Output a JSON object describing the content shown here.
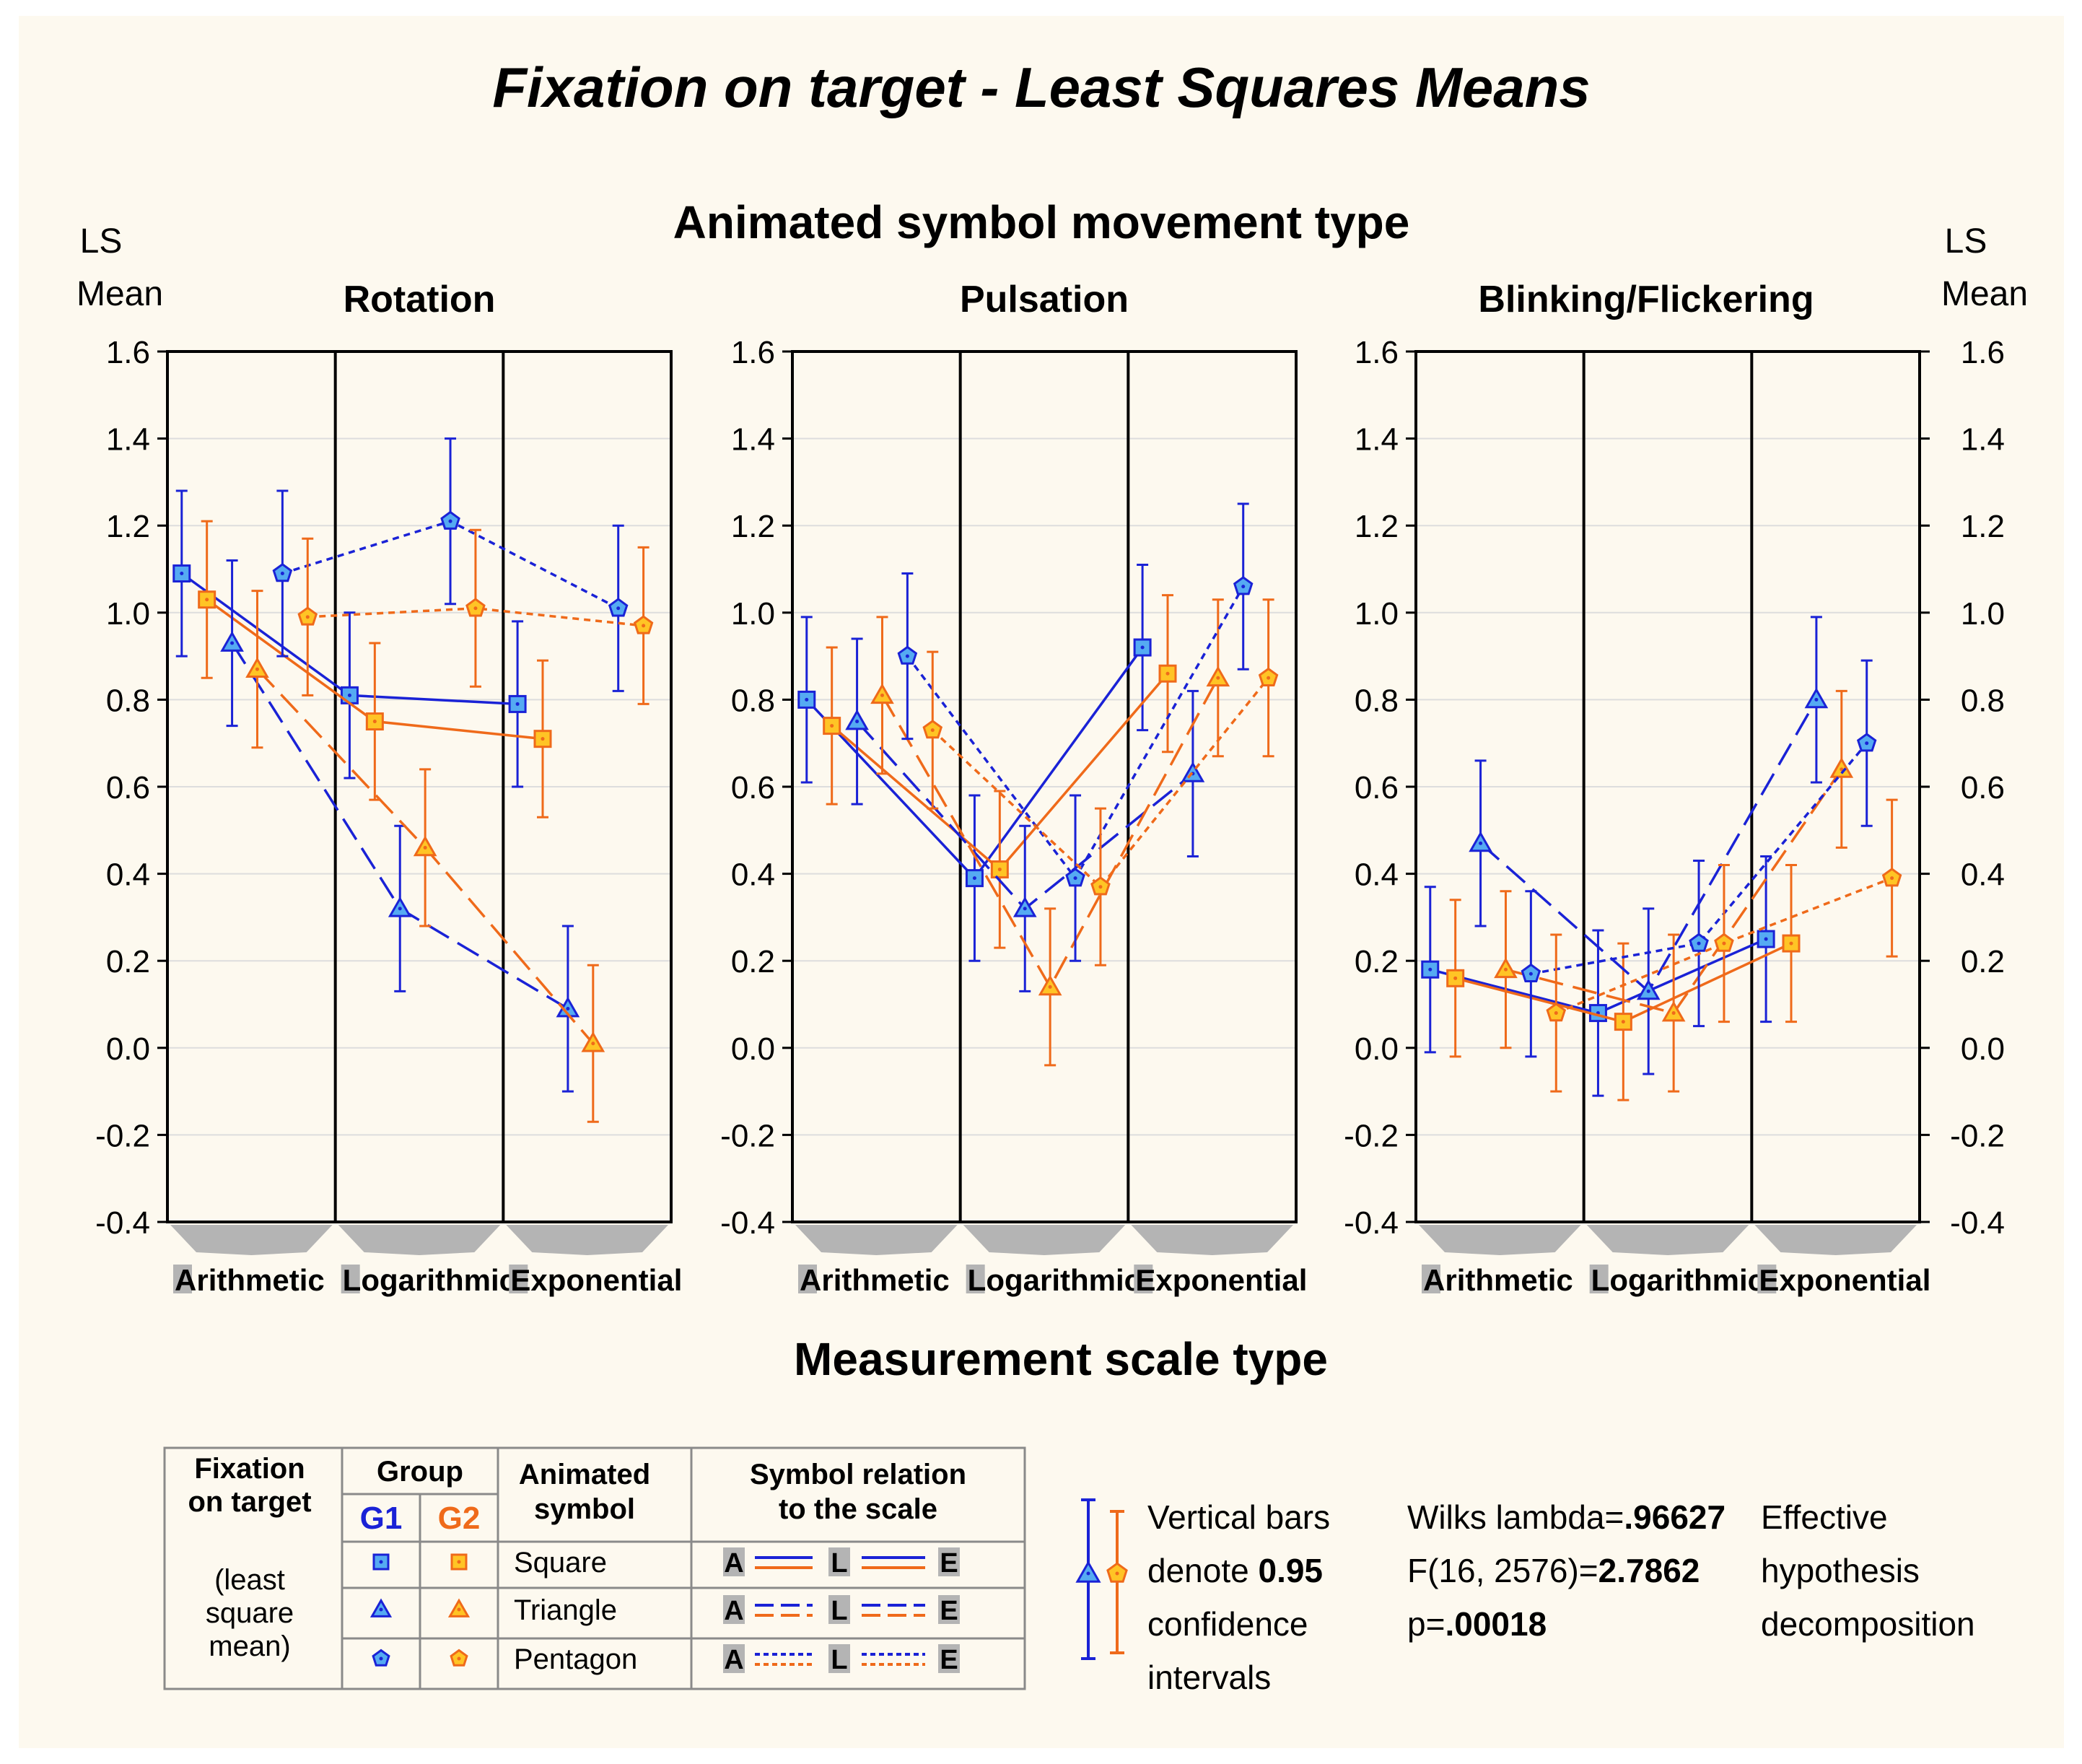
{
  "title": "Fixation on target -  Least Squares Means",
  "top_label": "Animated symbol movement type",
  "bottom_label": "Measurement scale type",
  "y_label_left": [
    "LS",
    "Mean"
  ],
  "y_label_right": [
    "LS",
    "Mean"
  ],
  "colors": {
    "G1": "#1a22d6",
    "G2": "#ef6a1a",
    "G1_fill": "#55aaf2",
    "G2_fill": "#ffc425",
    "background": "#fdf9ef",
    "arrow": "#b4b4b4"
  },
  "chart_data": {
    "type": "line",
    "ylim": [
      -0.4,
      1.6
    ],
    "yticks": [
      "1.6",
      "1.4",
      "1.2",
      "1.0",
      "0.8",
      "0.6",
      "0.4",
      "0.2",
      "0.0",
      "-0.2",
      "-0.4"
    ],
    "scales": [
      "Arithmetic",
      "Logarithmic",
      "Exponential"
    ],
    "scale_letters": [
      "A",
      "L",
      "E"
    ],
    "scale_rest": [
      "rithmetic",
      "ogarithmic",
      "xponential"
    ],
    "panels": [
      {
        "title": "Rotation",
        "series": [
          {
            "group": "G1",
            "symbol": "square",
            "values": [
              1.09,
              0.81,
              0.79
            ],
            "ci": [
              0.19,
              0.19,
              0.19
            ]
          },
          {
            "group": "G2",
            "symbol": "square",
            "values": [
              1.03,
              0.75,
              0.71
            ],
            "ci": [
              0.18,
              0.18,
              0.18
            ]
          },
          {
            "group": "G1",
            "symbol": "triangle",
            "values": [
              0.93,
              0.32,
              0.09
            ],
            "ci": [
              0.19,
              0.19,
              0.19
            ]
          },
          {
            "group": "G2",
            "symbol": "triangle",
            "values": [
              0.87,
              0.46,
              0.01
            ],
            "ci": [
              0.18,
              0.18,
              0.18
            ]
          },
          {
            "group": "G1",
            "symbol": "pentagon",
            "values": [
              1.09,
              1.21,
              1.01
            ],
            "ci": [
              0.19,
              0.19,
              0.19
            ]
          },
          {
            "group": "G2",
            "symbol": "pentagon",
            "values": [
              0.99,
              1.01,
              0.97
            ],
            "ci": [
              0.18,
              0.18,
              0.18
            ]
          }
        ]
      },
      {
        "title": "Pulsation",
        "series": [
          {
            "group": "G1",
            "symbol": "square",
            "values": [
              0.8,
              0.39,
              0.92
            ],
            "ci": [
              0.19,
              0.19,
              0.19
            ]
          },
          {
            "group": "G2",
            "symbol": "square",
            "values": [
              0.74,
              0.41,
              0.86
            ],
            "ci": [
              0.18,
              0.18,
              0.18
            ]
          },
          {
            "group": "G1",
            "symbol": "triangle",
            "values": [
              0.75,
              0.32,
              0.63
            ],
            "ci": [
              0.19,
              0.19,
              0.19
            ]
          },
          {
            "group": "G2",
            "symbol": "triangle",
            "values": [
              0.81,
              0.14,
              0.85
            ],
            "ci": [
              0.18,
              0.18,
              0.18
            ]
          },
          {
            "group": "G1",
            "symbol": "pentagon",
            "values": [
              0.9,
              0.39,
              1.06
            ],
            "ci": [
              0.19,
              0.19,
              0.19
            ]
          },
          {
            "group": "G2",
            "symbol": "pentagon",
            "values": [
              0.73,
              0.37,
              0.85
            ],
            "ci": [
              0.18,
              0.18,
              0.18
            ]
          }
        ]
      },
      {
        "title": "Blinking/Flickering",
        "series": [
          {
            "group": "G1",
            "symbol": "square",
            "values": [
              0.18,
              0.08,
              0.25
            ],
            "ci": [
              0.19,
              0.19,
              0.19
            ]
          },
          {
            "group": "G2",
            "symbol": "square",
            "values": [
              0.16,
              0.06,
              0.24
            ],
            "ci": [
              0.18,
              0.18,
              0.18
            ]
          },
          {
            "group": "G1",
            "symbol": "triangle",
            "values": [
              0.47,
              0.13,
              0.8
            ],
            "ci": [
              0.19,
              0.19,
              0.19
            ]
          },
          {
            "group": "G2",
            "symbol": "triangle",
            "values": [
              0.18,
              0.08,
              0.64
            ],
            "ci": [
              0.18,
              0.18,
              0.18
            ]
          },
          {
            "group": "G1",
            "symbol": "pentagon",
            "values": [
              0.17,
              0.24,
              0.7
            ],
            "ci": [
              0.19,
              0.19,
              0.19
            ]
          },
          {
            "group": "G2",
            "symbol": "pentagon",
            "values": [
              0.08,
              0.24,
              0.39
            ],
            "ci": [
              0.18,
              0.18,
              0.18
            ]
          }
        ]
      }
    ]
  },
  "legend": {
    "col1": [
      "Fixation",
      "on target",
      "(least",
      "square",
      "mean)"
    ],
    "group_header": "Group",
    "g1_label": "G1",
    "g2_label": "G2",
    "symbol_header": [
      "Animated",
      "symbol"
    ],
    "relation_header": [
      "Symbol relation",
      "to the scale"
    ],
    "rows": [
      {
        "symbol": "square",
        "label": "Square",
        "dash": "solid"
      },
      {
        "symbol": "triangle",
        "label": "Triangle",
        "dash": "dashed"
      },
      {
        "symbol": "pentagon",
        "label": "Pentagon",
        "dash": "dotted"
      }
    ],
    "relation_letters": [
      "A",
      "L",
      "E"
    ]
  },
  "ci_note": {
    "line1": "Vertical bars",
    "line2_pre": "denote ",
    "line2_bold": "0.95",
    "line3": "confidence",
    "line4": "intervals"
  },
  "stats": {
    "wilks_label": "Wilks lambda=",
    "wilks_value": ".96627",
    "f_label": "F(16, 2576)=",
    "f_value": "2.7862",
    "p_label": "p=",
    "p_value": ".00018"
  },
  "effective": [
    "Effective",
    "hypothesis",
    "decomposition"
  ]
}
